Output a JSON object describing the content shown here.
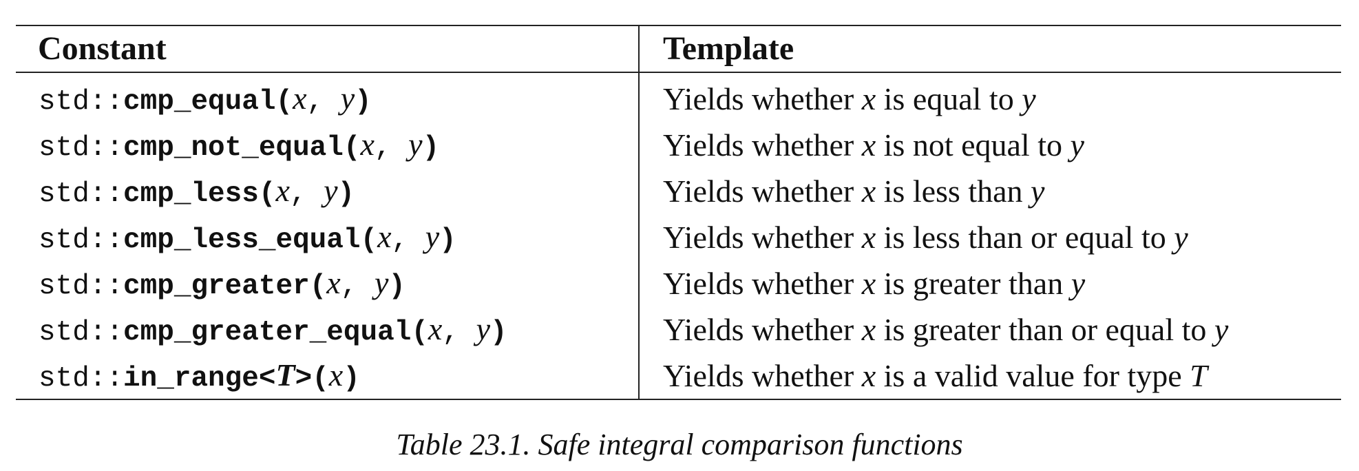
{
  "table": {
    "headers": {
      "constant": "Constant",
      "template": "Template"
    },
    "rows": [
      {
        "ns": "std::",
        "name": "cmp_equal",
        "open": "(",
        "p1": "x",
        "sep": ", ",
        "p2": "y",
        "close": ")",
        "desc_pre": "Yields whether ",
        "desc_x": "x",
        "desc_mid": " is equal to ",
        "desc_end": "y"
      },
      {
        "ns": "std::",
        "name": "cmp_not_equal",
        "open": "(",
        "p1": "x",
        "sep": ", ",
        "p2": "y",
        "close": ")",
        "desc_pre": "Yields whether ",
        "desc_x": "x",
        "desc_mid": " is not equal to ",
        "desc_end": "y"
      },
      {
        "ns": "std::",
        "name": "cmp_less",
        "open": "(",
        "p1": "x",
        "sep": ", ",
        "p2": "y",
        "close": ")",
        "desc_pre": "Yields whether ",
        "desc_x": "x",
        "desc_mid": " is less than ",
        "desc_end": "y"
      },
      {
        "ns": "std::",
        "name": "cmp_less_equal",
        "open": "(",
        "p1": "x",
        "sep": ", ",
        "p2": "y",
        "close": ")",
        "desc_pre": "Yields whether ",
        "desc_x": "x",
        "desc_mid": " is less than or equal to ",
        "desc_end": "y"
      },
      {
        "ns": "std::",
        "name": "cmp_greater",
        "open": "(",
        "p1": "x",
        "sep": ", ",
        "p2": "y",
        "close": ")",
        "desc_pre": "Yields whether ",
        "desc_x": "x",
        "desc_mid": " is greater than ",
        "desc_end": "y"
      },
      {
        "ns": "std::",
        "name": "cmp_greater_equal",
        "open": "(",
        "p1": "x",
        "sep": ", ",
        "p2": "y",
        "close": ")",
        "desc_pre": "Yields whether ",
        "desc_x": "x",
        "desc_mid": " is greater than or equal to ",
        "desc_end": "y"
      }
    ],
    "last_row": {
      "ns": "std::",
      "name": "in_range<",
      "tparam": "T",
      "name_close": ">",
      "open": "(",
      "p1": "x",
      "close": ")",
      "desc_pre": "Yields whether ",
      "desc_x": "x",
      "desc_mid": " is a valid value for type ",
      "desc_end": "T"
    }
  },
  "caption": "Table 23.1. Safe integral comparison functions"
}
